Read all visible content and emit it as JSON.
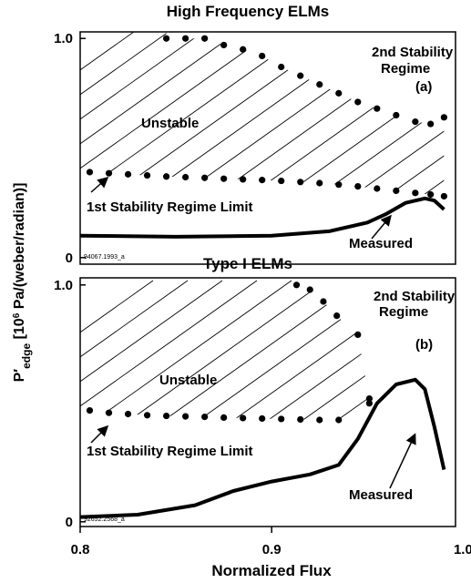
{
  "y_label": {
    "base": "P′",
    "sub": "edge",
    "pre": " [10",
    "sup": "6",
    "post": " Pa/(weber/radian)]"
  },
  "chart_data": [
    {
      "type": "scatter-line",
      "title": "High Frequency ELMs",
      "xlim": [
        0.8,
        0.996
      ],
      "ylim": [
        -0.03,
        1.03
      ],
      "yticks": [
        0,
        {
          "value": 1,
          "label": "1.0"
        }
      ],
      "annotations": [
        "2nd Stability",
        "Regime",
        "(a)",
        "Unstable",
        "1st Stability Regime Limit",
        "Measured",
        "94067.1993_a"
      ],
      "series": [
        {
          "name": "2nd stability boundary",
          "style": "dots",
          "color": "#000000",
          "x": [
            0.845,
            0.855,
            0.865,
            0.875,
            0.885,
            0.895,
            0.905,
            0.915,
            0.925,
            0.935,
            0.945,
            0.955,
            0.965,
            0.975,
            0.983,
            0.99
          ],
          "values": [
            1.0,
            1.0,
            1.0,
            0.97,
            0.95,
            0.92,
            0.87,
            0.83,
            0.79,
            0.75,
            0.71,
            0.68,
            0.65,
            0.62,
            0.61,
            0.64
          ]
        },
        {
          "name": "1st Stability Regime Limit",
          "style": "dots",
          "color": "#000000",
          "x": [
            0.805,
            0.815,
            0.825,
            0.835,
            0.845,
            0.855,
            0.865,
            0.875,
            0.885,
            0.895,
            0.905,
            0.915,
            0.925,
            0.935,
            0.945,
            0.955,
            0.965,
            0.975,
            0.983,
            0.99
          ],
          "values": [
            0.39,
            0.385,
            0.38,
            0.375,
            0.37,
            0.367,
            0.364,
            0.36,
            0.357,
            0.354,
            0.35,
            0.345,
            0.34,
            0.333,
            0.325,
            0.315,
            0.305,
            0.295,
            0.288,
            0.28
          ]
        },
        {
          "name": "Measured",
          "style": "line",
          "color": "#000000",
          "x": [
            0.8,
            0.85,
            0.9,
            0.93,
            0.95,
            0.96,
            0.97,
            0.98,
            0.985,
            0.99
          ],
          "values": [
            0.1,
            0.095,
            0.1,
            0.12,
            0.16,
            0.2,
            0.25,
            0.27,
            0.26,
            0.22
          ]
        }
      ]
    },
    {
      "type": "scatter-line",
      "title": "Type I ELMs",
      "x_label": "Normalized Flux",
      "xlim": [
        0.8,
        0.996
      ],
      "ylim": [
        -0.02,
        1.03
      ],
      "xticks": [
        0.8,
        0.9,
        {
          "value": 1,
          "label": "1.0"
        }
      ],
      "yticks": [
        0,
        {
          "value": 1,
          "label": "1.0"
        }
      ],
      "annotations": [
        "2nd Stability",
        "Regime",
        "(b)",
        "Unstable",
        "1st Stability Regime Limit",
        "Measured",
        "92652.2568_a"
      ],
      "series": [
        {
          "name": "2nd stability boundary",
          "style": "dots",
          "color": "#000000",
          "x": [
            0.913,
            0.92,
            0.927,
            0.934,
            0.945,
            0.951,
            0.951
          ],
          "values": [
            1.0,
            0.98,
            0.93,
            0.87,
            0.79,
            0.52,
            0.5
          ]
        },
        {
          "name": "1st Stability Regime Limit",
          "style": "dots",
          "color": "#000000",
          "x": [
            0.805,
            0.815,
            0.825,
            0.835,
            0.845,
            0.855,
            0.865,
            0.875,
            0.885,
            0.895,
            0.905,
            0.915,
            0.925,
            0.935
          ],
          "values": [
            0.47,
            0.46,
            0.455,
            0.45,
            0.447,
            0.445,
            0.443,
            0.44,
            0.438,
            0.436,
            0.434,
            0.432,
            0.43,
            0.43
          ]
        },
        {
          "name": "Measured",
          "style": "line",
          "color": "#000000",
          "x": [
            0.8,
            0.83,
            0.86,
            0.88,
            0.9,
            0.92,
            0.935,
            0.945,
            0.955,
            0.965,
            0.975,
            0.98,
            0.985,
            0.99
          ],
          "values": [
            0.02,
            0.03,
            0.07,
            0.13,
            0.17,
            0.2,
            0.24,
            0.35,
            0.5,
            0.58,
            0.6,
            0.56,
            0.4,
            0.22
          ]
        }
      ]
    }
  ]
}
